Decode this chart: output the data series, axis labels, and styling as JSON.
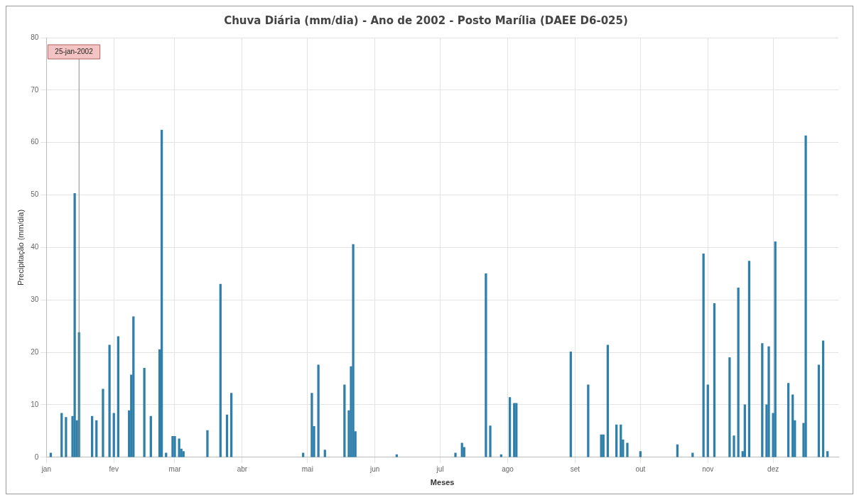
{
  "chart_data": {
    "type": "bar",
    "title": "Chuva Diária (mm/dia) - Ano de 2002 - Posto Marília (DAEE D6-025)",
    "xlabel": "Meses",
    "ylabel": "Precipitação (mm/dia)",
    "color": "#2f7fab",
    "x": [
      "2002-01-03",
      "2002-01-08",
      "2002-01-10",
      "2002-01-13",
      "2002-01-14",
      "2002-01-15",
      "2002-01-16",
      "2002-01-22",
      "2002-01-24",
      "2002-01-27",
      "2002-01-30",
      "2002-02-01",
      "2002-02-03",
      "2002-02-08",
      "2002-02-09",
      "2002-02-10",
      "2002-02-15",
      "2002-02-18",
      "2002-02-22",
      "2002-02-23",
      "2002-02-25",
      "2002-02-28",
      "2002-03-01",
      "2002-03-03",
      "2002-03-04",
      "2002-03-05",
      "2002-03-16",
      "2002-03-22",
      "2002-03-25",
      "2002-03-27",
      "2002-04-29",
      "2002-05-03",
      "2002-05-04",
      "2002-05-06",
      "2002-05-09",
      "2002-05-18",
      "2002-05-20",
      "2002-05-21",
      "2002-05-22",
      "2002-05-23",
      "2002-06-11",
      "2002-07-08",
      "2002-07-11",
      "2002-07-12",
      "2002-07-22",
      "2002-07-24",
      "2002-07-29",
      "2002-08-02",
      "2002-08-04",
      "2002-08-05",
      "2002-08-30",
      "2002-09-07",
      "2002-09-13",
      "2002-09-14",
      "2002-09-16",
      "2002-09-20",
      "2002-09-22",
      "2002-09-23",
      "2002-09-25",
      "2002-10-01",
      "2002-10-18",
      "2002-10-25",
      "2002-10-30",
      "2002-11-01",
      "2002-11-04",
      "2002-11-11",
      "2002-11-13",
      "2002-11-15",
      "2002-11-17",
      "2002-11-18",
      "2002-11-20",
      "2002-11-26",
      "2002-11-28",
      "2002-11-29",
      "2002-12-01",
      "2002-12-02",
      "2002-12-08",
      "2002-12-10",
      "2002-12-11",
      "2002-12-15",
      "2002-12-16",
      "2002-12-22",
      "2002-12-24",
      "2002-12-26"
    ],
    "values": [
      0.8,
      8.4,
      7.6,
      7.8,
      50.3,
      7,
      23.8,
      7.8,
      7,
      13,
      21.4,
      8.4,
      23,
      8.9,
      15.7,
      26.8,
      17,
      7.8,
      20.5,
      62.4,
      0.8,
      4,
      4,
      3.5,
      1.6,
      1.1,
      5.1,
      33,
      8.1,
      12.2,
      0.8,
      12.2,
      5.9,
      17.6,
      1.4,
      13.8,
      8.9,
      17.3,
      40.6,
      4.9,
      0.5,
      0.8,
      2.7,
      1.9,
      35,
      6,
      0.5,
      11.4,
      10.3,
      10.3,
      20.1,
      13.8,
      4.3,
      4.3,
      21.4,
      6.2,
      6.2,
      3.3,
      2.7,
      1.1,
      2.4,
      0.8,
      38.8,
      13.8,
      29.3,
      19,
      4.1,
      32.3,
      1.1,
      10,
      37.4,
      21.7,
      10,
      21.1,
      8.4,
      41.1,
      14.1,
      11.9,
      7,
      6.5,
      61.3,
      17.6,
      22.2,
      1.1
    ],
    "xlim": [
      "2002-01-01",
      "2002-12-31"
    ],
    "xticks": [
      {
        "value": "2002-01-01",
        "label": "jan"
      },
      {
        "value": "2002-02-01",
        "label": "fev"
      },
      {
        "value": "2002-03-01",
        "label": "mar"
      },
      {
        "value": "2002-04-01",
        "label": "abr"
      },
      {
        "value": "2002-05-01",
        "label": "mai"
      },
      {
        "value": "2002-06-01",
        "label": "jun"
      },
      {
        "value": "2002-07-01",
        "label": "jul"
      },
      {
        "value": "2002-08-01",
        "label": "ago"
      },
      {
        "value": "2002-09-01",
        "label": "set"
      },
      {
        "value": "2002-10-01",
        "label": "out"
      },
      {
        "value": "2002-11-01",
        "label": "nov"
      },
      {
        "value": "2002-12-01",
        "label": "dez"
      }
    ],
    "ylim": [
      0,
      80
    ],
    "yticks": [
      0,
      10,
      20,
      30,
      40,
      50,
      60,
      70,
      80
    ],
    "grid": true,
    "legend": false,
    "ref_lines": [
      {
        "axis": "x",
        "value": "2002-01-16",
        "label": "25-jan-2002",
        "color": "#8c8c8c"
      }
    ]
  }
}
